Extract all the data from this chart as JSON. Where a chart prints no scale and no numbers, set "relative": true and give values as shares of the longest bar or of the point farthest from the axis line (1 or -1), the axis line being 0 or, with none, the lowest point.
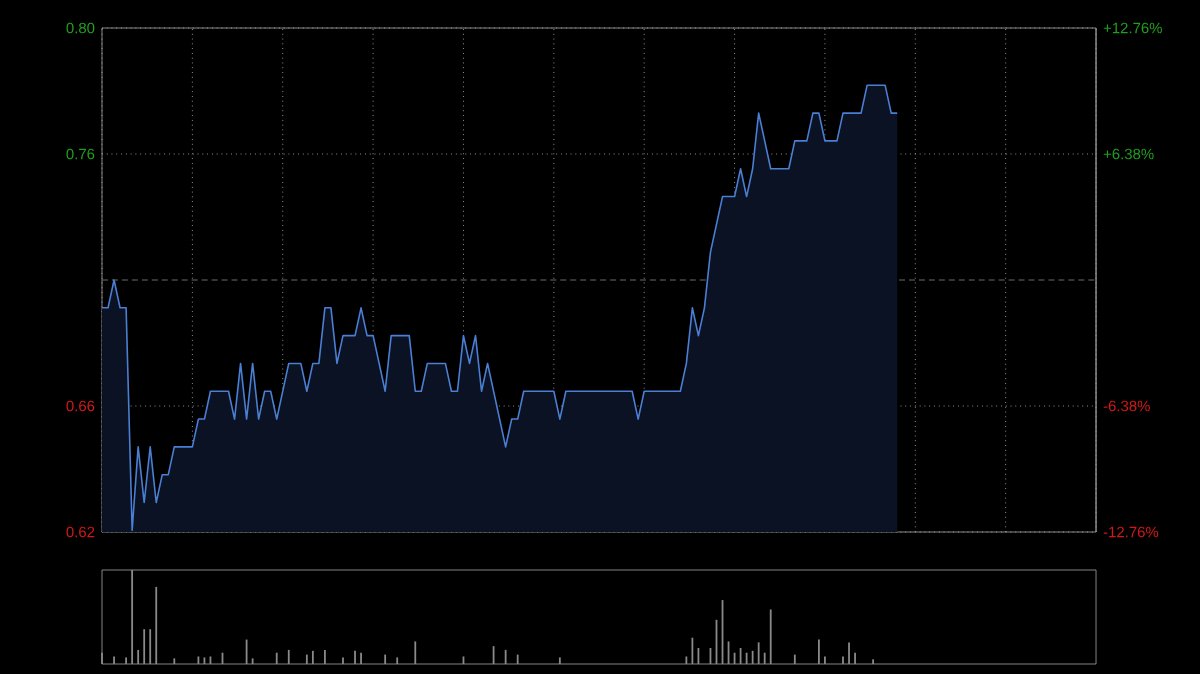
{
  "chart_data": [
    {
      "type": "area",
      "color": "#4a7fd4",
      "categories": [
        null,
        null,
        null,
        null,
        null,
        null,
        null,
        null,
        null,
        null,
        null,
        null,
        null,
        null,
        null,
        null,
        null,
        null,
        null,
        null,
        null,
        null,
        null,
        null,
        null,
        null,
        null,
        null,
        null,
        null,
        null,
        null,
        null,
        null,
        null,
        null,
        null,
        null,
        null,
        null,
        null,
        null,
        null,
        null,
        null,
        null,
        null,
        null,
        null,
        null,
        null,
        null,
        null,
        null,
        null,
        null,
        null,
        null,
        null,
        null,
        null,
        null,
        null,
        null,
        null,
        null,
        null,
        null,
        null,
        null,
        null,
        null,
        null,
        null,
        null,
        null,
        null,
        null,
        null,
        null,
        null,
        null,
        null,
        null,
        null,
        null,
        null,
        null,
        null,
        null,
        null,
        null,
        null,
        null,
        null,
        null,
        null,
        null,
        null,
        null,
        null,
        null,
        null,
        null,
        null,
        null,
        null,
        null,
        null,
        null,
        null,
        null,
        null,
        null,
        null,
        null,
        null,
        null,
        null,
        null,
        null,
        null,
        null,
        null,
        null,
        null,
        null,
        null,
        null,
        null,
        null,
        null,
        null,
        null,
        null,
        null,
        null,
        null,
        null,
        null,
        null,
        null,
        null,
        null,
        null,
        null,
        null,
        null,
        null,
        null,
        null,
        null,
        null,
        null,
        null,
        null,
        null,
        null,
        null,
        null,
        null,
        null,
        null,
        null,
        null,
        null
      ],
      "values": [
        0.7,
        0.7,
        0.71,
        0.7,
        0.7,
        0.62,
        0.65,
        0.63,
        0.65,
        0.63,
        0.64,
        0.64,
        0.65,
        0.65,
        0.65,
        0.65,
        0.66,
        0.66,
        0.67,
        0.67,
        0.67,
        0.67,
        0.66,
        0.68,
        0.66,
        0.68,
        0.66,
        0.67,
        0.67,
        0.66,
        0.67,
        0.68,
        0.68,
        0.68,
        0.67,
        0.68,
        0.68,
        0.7,
        0.7,
        0.68,
        0.69,
        0.69,
        0.69,
        0.7,
        0.69,
        0.69,
        0.68,
        0.67,
        0.69,
        0.69,
        0.69,
        0.69,
        0.67,
        0.67,
        0.68,
        0.68,
        0.68,
        0.68,
        0.67,
        0.67,
        0.69,
        0.68,
        0.69,
        0.67,
        0.68,
        0.67,
        0.66,
        0.65,
        0.66,
        0.66,
        0.67,
        0.67,
        0.67,
        0.67,
        0.67,
        0.67,
        0.66,
        0.67,
        0.67,
        0.67,
        0.67,
        0.67,
        0.67,
        0.67,
        0.67,
        0.67,
        0.67,
        0.67,
        0.67,
        0.66,
        0.67,
        0.67,
        0.67,
        0.67,
        0.67,
        0.67,
        0.67,
        0.68,
        0.7,
        0.69,
        0.7,
        0.72,
        0.73,
        0.74,
        0.74,
        0.74,
        0.75,
        0.74,
        0.75,
        0.77,
        0.76,
        0.75,
        0.75,
        0.75,
        0.75,
        0.76,
        0.76,
        0.76,
        0.77,
        0.77,
        0.76,
        0.76,
        0.76,
        0.77,
        0.77,
        0.77,
        0.77,
        0.78,
        0.78,
        0.78,
        0.78,
        0.77,
        0.77,
        null,
        null,
        null,
        null,
        null,
        null,
        null,
        null,
        null,
        null,
        null,
        null,
        null,
        null,
        null,
        null,
        null,
        null,
        null,
        null,
        null,
        null,
        null,
        null,
        null,
        null,
        null,
        null,
        null,
        null,
        null,
        null,
        null
      ],
      "ylim": [
        0.6194,
        0.8006
      ],
      "yticks": [
        {
          "value": 0.6194,
          "label": "0.62"
        },
        {
          "value": 0.6647,
          "label": "0.66"
        },
        {
          "value": 0.7553,
          "label": "0.76"
        },
        {
          "value": 0.8006,
          "label": "0.80"
        }
      ],
      "y2lim": [
        -12.76,
        12.76
      ],
      "y2ticks": [
        {
          "value": -12.76,
          "label": "-12.76%"
        },
        {
          "value": -6.38,
          "label": "-6.38%"
        },
        {
          "value": 6.38,
          "label": "+6.38%"
        },
        {
          "value": 12.76,
          "label": "+12.76%"
        }
      ],
      "ref_lines": [
        {
          "axis": "y",
          "value": 0.71,
          "color": "#888888",
          "line_style": "dashed"
        }
      ],
      "grid": true,
      "tick_labels": "y"
    },
    {
      "type": "bar",
      "color": "#8a8a8a",
      "relative": true,
      "tick_labels": false,
      "categories": [
        null,
        null,
        null,
        null,
        null,
        null,
        null,
        null,
        null,
        null,
        null,
        null,
        null,
        null,
        null,
        null,
        null,
        null,
        null,
        null,
        null,
        null,
        null,
        null,
        null,
        null,
        null,
        null,
        null,
        null,
        null,
        null,
        null,
        null,
        null,
        null,
        null,
        null,
        null,
        null,
        null,
        null,
        null,
        null,
        null,
        null,
        null,
        null,
        null,
        null,
        null,
        null,
        null,
        null,
        null,
        null,
        null,
        null,
        null,
        null,
        null,
        null,
        null,
        null,
        null,
        null,
        null,
        null,
        null,
        null,
        null,
        null,
        null,
        null,
        null,
        null,
        null,
        null,
        null,
        null,
        null,
        null,
        null,
        null,
        null,
        null,
        null,
        null,
        null,
        null,
        null,
        null,
        null,
        null,
        null,
        null,
        null,
        null,
        null,
        null,
        null,
        null,
        null,
        null,
        null,
        null,
        null,
        null,
        null,
        null,
        null,
        null,
        null,
        null,
        null,
        null,
        null,
        null,
        null,
        null,
        null,
        null,
        null,
        null,
        null,
        null,
        null,
        null,
        null,
        null,
        null,
        null,
        null,
        null,
        null,
        null,
        null,
        null,
        null,
        null,
        null,
        null,
        null,
        null,
        null,
        null,
        null,
        null,
        null,
        null,
        null,
        null,
        null,
        null,
        null,
        null,
        null,
        null,
        null,
        null,
        null,
        null,
        null,
        null,
        null,
        null
      ],
      "values": [
        0.12,
        null,
        0.08,
        null,
        0.07,
        1.0,
        0.15,
        0.37,
        0.37,
        0.82,
        null,
        null,
        0.06,
        null,
        null,
        null,
        0.08,
        0.07,
        0.08,
        null,
        0.12,
        null,
        null,
        null,
        0.26,
        0.06,
        null,
        null,
        null,
        0.12,
        null,
        0.15,
        null,
        null,
        0.1,
        0.14,
        null,
        0.15,
        null,
        null,
        0.07,
        null,
        0.14,
        0.12,
        null,
        null,
        null,
        0.1,
        null,
        0.07,
        null,
        null,
        0.24,
        null,
        null,
        null,
        null,
        null,
        null,
        null,
        0.08,
        null,
        null,
        null,
        null,
        0.19,
        null,
        0.15,
        null,
        0.1,
        null,
        null,
        null,
        null,
        null,
        null,
        0.07,
        null,
        null,
        null,
        null,
        null,
        null,
        null,
        null,
        null,
        null,
        null,
        null,
        null,
        null,
        null,
        null,
        null,
        null,
        null,
        null,
        0.08,
        0.28,
        0.17,
        null,
        0.17,
        0.47,
        0.68,
        0.24,
        0.12,
        0.17,
        0.12,
        0.14,
        0.23,
        0.12,
        0.58,
        null,
        null,
        null,
        0.1,
        null,
        null,
        null,
        0.26,
        0.08,
        null,
        null,
        0.08,
        0.23,
        0.12,
        null,
        null,
        0.05,
        null,
        null,
        null,
        null,
        null,
        null,
        null,
        null,
        null,
        null,
        null,
        null,
        null,
        null,
        null,
        null,
        null,
        null,
        null,
        null,
        null,
        null,
        null,
        null,
        null,
        null,
        null,
        null,
        null,
        null,
        null,
        null,
        null,
        null,
        null,
        null,
        null
      ]
    }
  ]
}
